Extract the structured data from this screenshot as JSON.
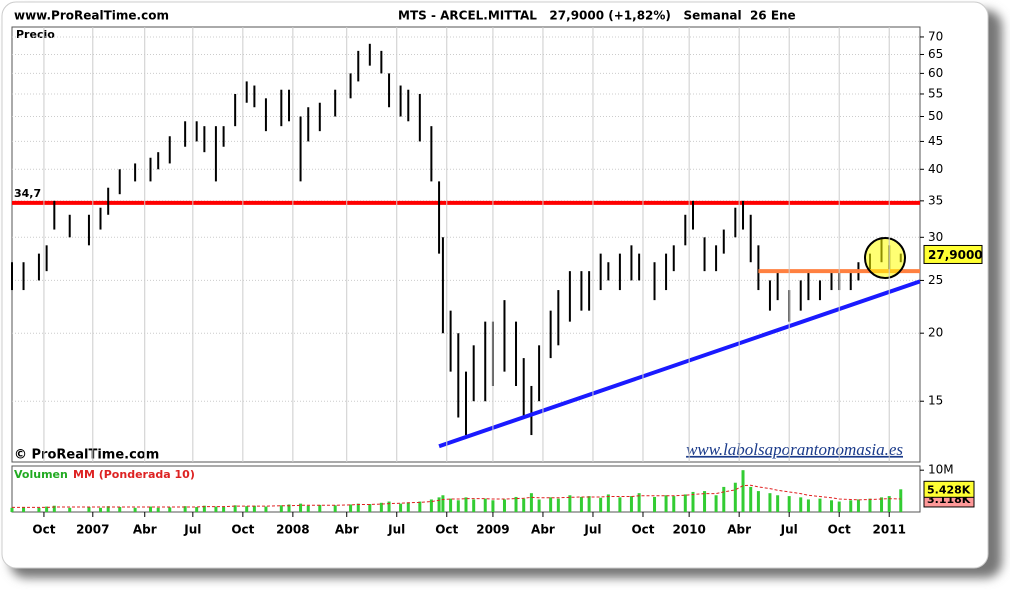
{
  "header": {
    "site": "www.ProRealTime.com",
    "title": "MTS - ARCEL.MITTAL   27,9000 (+1,82%)   Semanal  26 Ene"
  },
  "chart_data": [
    {
      "type": "range-bar",
      "ylabel": "Precio",
      "watermark": "© ProRealTime.com",
      "credit": "www.labolsaporantonomasia.es",
      "log_scale": true,
      "grid": true,
      "color": "#000000",
      "x": [
        0,
        3,
        7,
        9,
        11,
        15,
        20,
        23,
        25,
        28,
        32,
        36,
        38,
        41,
        45,
        48,
        50,
        53,
        55,
        58,
        61,
        63,
        66,
        70,
        72,
        75,
        77,
        80,
        84,
        88,
        90,
        93,
        96,
        98,
        101,
        103,
        106,
        109,
        111,
        112,
        114,
        116,
        118,
        120,
        123,
        125,
        128,
        131,
        133,
        135,
        137,
        140,
        142,
        145,
        148,
        150,
        153,
        155,
        158,
        161,
        163,
        167,
        170,
        172,
        175,
        177,
        180,
        183,
        185,
        188,
        190,
        192,
        194,
        197,
        199,
        202,
        205,
        207,
        210,
        213,
        215,
        218,
        220,
        223,
        226,
        228,
        231
      ],
      "high": [
        27,
        27,
        28,
        29,
        35,
        33,
        33,
        34,
        37,
        40,
        41,
        42,
        43,
        46,
        49,
        49,
        48,
        48,
        48,
        55,
        58,
        57,
        54,
        56,
        56,
        50,
        52,
        53,
        56,
        60,
        66,
        68,
        66,
        60,
        57,
        56,
        55,
        48,
        38,
        30,
        22,
        20,
        17,
        19,
        21,
        21,
        23,
        21,
        18,
        16,
        19,
        22,
        24,
        26,
        26,
        26,
        28,
        27,
        28,
        29,
        28,
        27,
        28,
        29,
        33,
        35,
        30,
        29,
        31,
        34,
        35,
        33,
        29,
        25,
        26,
        24,
        25,
        26,
        25,
        26,
        26,
        26,
        27,
        28,
        30,
        29,
        28
      ],
      "low": [
        24,
        24,
        25,
        26,
        31,
        30,
        29,
        31,
        33,
        36,
        38,
        38,
        40,
        41,
        44,
        45,
        43,
        38,
        44,
        48,
        53,
        52,
        47,
        48,
        49,
        38,
        45,
        47,
        50,
        54,
        58,
        62,
        60,
        52,
        50,
        49,
        45,
        38,
        28,
        20,
        17,
        14,
        13,
        15,
        15,
        16,
        17,
        16,
        14,
        13,
        15,
        18,
        19,
        21,
        22,
        22,
        24,
        25,
        24,
        25,
        25,
        23,
        24,
        26,
        29,
        31,
        26,
        26,
        28,
        30,
        31,
        27,
        24,
        22,
        23,
        21,
        22,
        23,
        23,
        24,
        24,
        24,
        25,
        26,
        27,
        26,
        27
      ],
      "xlim": [
        0,
        236
      ],
      "ylim": [
        11.6,
        72.7
      ],
      "yticks": [
        15,
        20,
        25,
        30,
        35,
        40,
        45,
        50,
        55,
        60,
        65,
        70
      ],
      "last_price": {
        "value": 27.9,
        "label": "27,9000"
      },
      "levels": [
        {
          "value": 34.7,
          "label": "34,7",
          "color": "#ff0000"
        }
      ],
      "segments": [
        {
          "x": [
            194,
            236
          ],
          "y": [
            26,
            26
          ],
          "color": "#ff8040"
        },
        {
          "x": [
            111,
            236
          ],
          "y": [
            12.4,
            24.9
          ],
          "color": "#1a1aff"
        }
      ]
    },
    {
      "type": "bar",
      "x": [
        0,
        3,
        7,
        9,
        11,
        15,
        20,
        23,
        25,
        28,
        32,
        36,
        38,
        41,
        45,
        48,
        50,
        53,
        55,
        58,
        61,
        63,
        66,
        70,
        72,
        75,
        77,
        80,
        84,
        88,
        90,
        93,
        96,
        98,
        101,
        103,
        106,
        109,
        111,
        112,
        114,
        116,
        118,
        120,
        123,
        125,
        128,
        131,
        133,
        135,
        137,
        140,
        142,
        145,
        148,
        150,
        153,
        155,
        158,
        161,
        163,
        167,
        170,
        172,
        175,
        177,
        180,
        183,
        185,
        188,
        190,
        192,
        194,
        197,
        199,
        202,
        205,
        207,
        210,
        213,
        215,
        218,
        220,
        223,
        226,
        228,
        231
      ],
      "series": [
        {
          "name": "Volumen",
          "color": "#33cc33",
          "values": [
            1,
            1.2,
            1,
            1.3,
            1.5,
            1,
            1.2,
            1,
            1.4,
            1.2,
            1,
            1.3,
            1,
            1.1,
            1.4,
            1.2,
            1.5,
            1.3,
            1.2,
            1.6,
            1.4,
            1.5,
            1.3,
            1.6,
            1.8,
            2,
            1.5,
            1.7,
            1.6,
            1.8,
            2,
            1.9,
            2.2,
            2.5,
            2,
            2.3,
            2.5,
            3,
            3.5,
            4,
            3.2,
            2.8,
            3.5,
            3,
            3.2,
            2.8,
            3,
            3.6,
            3.2,
            4.5,
            3,
            3.5,
            3.2,
            4,
            3.6,
            3.8,
            3.4,
            4.2,
            3.5,
            3.8,
            4.5,
            3.6,
            4,
            3.8,
            4.2,
            4.8,
            5,
            4,
            6,
            7,
            10,
            6,
            5,
            4.5,
            4,
            3.8,
            3.5,
            3,
            3.2,
            2.8,
            2.5,
            2.8,
            3,
            3.2,
            3.5,
            3.8,
            5.428
          ],
          "last_label": "5.428K"
        },
        {
          "name": "MM (Ponderada 10)",
          "color": "#e02020",
          "values": [
            1.1,
            1.1,
            1.1,
            1.1,
            1.2,
            1.2,
            1.2,
            1.2,
            1.2,
            1.2,
            1.2,
            1.2,
            1.2,
            1.2,
            1.2,
            1.2,
            1.3,
            1.3,
            1.3,
            1.4,
            1.4,
            1.4,
            1.4,
            1.5,
            1.5,
            1.6,
            1.6,
            1.6,
            1.6,
            1.7,
            1.8,
            1.8,
            1.9,
            2,
            2.1,
            2.2,
            2.3,
            2.5,
            2.8,
            3,
            3.1,
            3.1,
            3.2,
            3.2,
            3.2,
            3.1,
            3.1,
            3.2,
            3.3,
            3.5,
            3.4,
            3.4,
            3.4,
            3.5,
            3.6,
            3.6,
            3.6,
            3.7,
            3.7,
            3.7,
            3.9,
            3.9,
            3.9,
            3.9,
            4,
            4.2,
            4.4,
            4.4,
            4.8,
            5.3,
            6.3,
            6.4,
            6,
            5.6,
            5.2,
            4.8,
            4.4,
            4,
            3.7,
            3.4,
            3.1,
            3,
            2.9,
            3,
            3.1,
            3.2,
            3.118
          ],
          "last_label": "3.118K"
        }
      ],
      "xlim": [
        0,
        236
      ],
      "ylim": [
        0,
        11
      ],
      "yticks": [
        {
          "value": 10,
          "label": "10M"
        }
      ],
      "xticks": [
        {
          "value": 8.3,
          "label": "Oct"
        },
        {
          "value": 21,
          "label": "2007"
        },
        {
          "value": 34.5,
          "label": "Abr"
        },
        {
          "value": 47,
          "label": "Jul"
        },
        {
          "value": 60,
          "label": "Oct"
        },
        {
          "value": 73,
          "label": "2008"
        },
        {
          "value": 87,
          "label": "Abr"
        },
        {
          "value": 100,
          "label": "Jul"
        },
        {
          "value": 113,
          "label": "Oct"
        },
        {
          "value": 125,
          "label": "2009"
        },
        {
          "value": 138,
          "label": "Abr"
        },
        {
          "value": 151,
          "label": "Jul"
        },
        {
          "value": 164,
          "label": "Oct"
        },
        {
          "value": 176,
          "label": "2010"
        },
        {
          "value": 189,
          "label": "Abr"
        },
        {
          "value": 202,
          "label": "Jul"
        },
        {
          "value": 215,
          "label": "Oct"
        },
        {
          "value": 228,
          "label": "2011"
        }
      ]
    }
  ]
}
